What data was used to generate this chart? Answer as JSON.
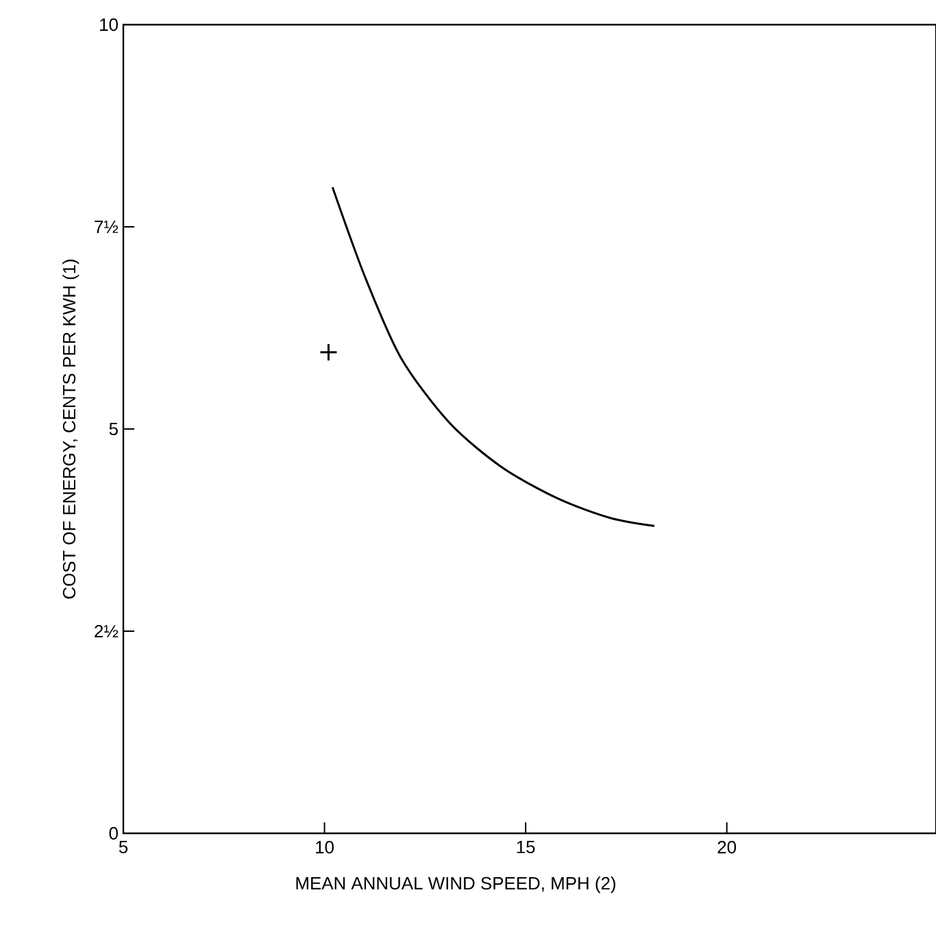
{
  "chart_data": {
    "type": "line",
    "xlabel": "MEAN ANNUAL WIND SPEED, MPH (2)",
    "ylabel": "COST OF ENERGY, CENTS PER KWH (1)",
    "xlim": [
      5,
      25.2
    ],
    "ylim": [
      0,
      10
    ],
    "xticks": [
      5,
      10,
      15,
      20
    ],
    "yticks": [
      0,
      {
        "value": 2.5,
        "label": "2½"
      },
      5,
      {
        "value": 7.5,
        "label": "7½"
      },
      10
    ],
    "grid": false,
    "series": [
      {
        "color": "#000000",
        "marker": "none",
        "line_style": "solid",
        "x": [
          10.2,
          11.0,
          11.9,
          13.1,
          14.4,
          15.8,
          17.1,
          18.2
        ],
        "values": [
          7.99,
          6.89,
          5.88,
          5.08,
          4.53,
          4.14,
          3.9,
          3.8
        ]
      },
      {
        "type": "scatter",
        "color": "#000000",
        "marker": "cross",
        "x": [
          10.1
        ],
        "values": [
          5.95
        ]
      }
    ]
  }
}
